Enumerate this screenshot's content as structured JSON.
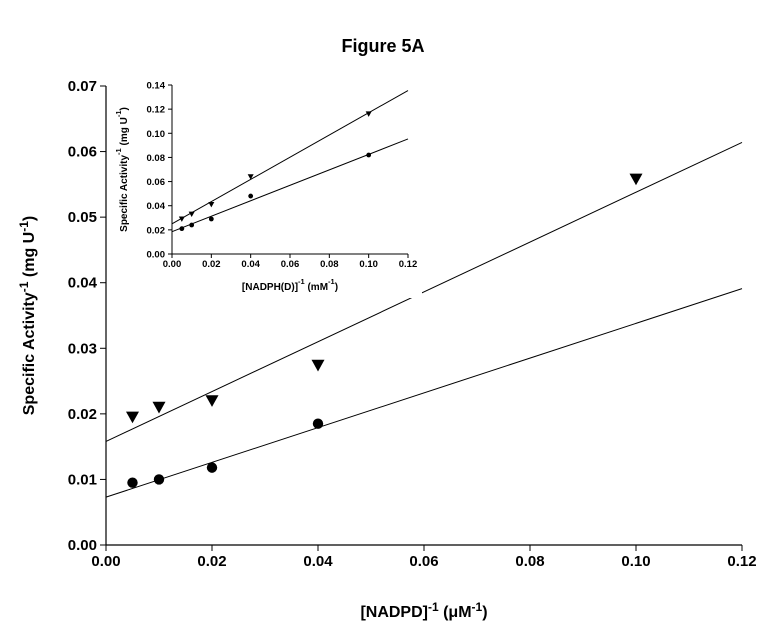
{
  "chart_data": [
    {
      "type": "scatter",
      "title": "Figure 5A",
      "xlabel": "[NADPD]-1 (μM-1)",
      "ylabel": "Specific Activity-1 (mg U-1)",
      "xlim": [
        0.0,
        0.12
      ],
      "ylim": [
        0.0,
        0.07
      ],
      "x_ticks": [
        "0.00",
        "0.02",
        "0.04",
        "0.06",
        "0.08",
        "0.10",
        "0.12"
      ],
      "y_ticks": [
        "0.00",
        "0.01",
        "0.02",
        "0.03",
        "0.04",
        "0.05",
        "0.06",
        "0.07"
      ],
      "grid": false,
      "legend": "none",
      "series": [
        {
          "marker": "triangle-down",
          "x": [
            0.005,
            0.01,
            0.02,
            0.04,
            0.1
          ],
          "y": [
            0.0195,
            0.021,
            0.022,
            0.0274,
            0.0558
          ],
          "fit": {
            "intercept": 0.0158,
            "slope": 0.38
          }
        },
        {
          "marker": "circle",
          "x": [
            0.005,
            0.01,
            0.02,
            0.04
          ],
          "y": [
            0.0095,
            0.01,
            0.0118,
            0.0185
          ],
          "fit": {
            "intercept": 0.0073,
            "slope": 0.265
          }
        }
      ]
    },
    {
      "type": "scatter",
      "title": "",
      "xlabel": "[NADPH(D)]-1 (mM-1)",
      "ylabel": "Specific Activity-1 (mg U-1)",
      "xlim": [
        0.0,
        0.12
      ],
      "ylim": [
        0.0,
        0.14
      ],
      "x_ticks": [
        "0.00",
        "0.02",
        "0.04",
        "0.06",
        "0.08",
        "0.10",
        "0.12"
      ],
      "y_ticks": [
        "0.00",
        "0.02",
        "0.04",
        "0.06",
        "0.08",
        "0.10",
        "0.12",
        "0.14"
      ],
      "grid": false,
      "legend": "none",
      "series": [
        {
          "marker": "triangle-down",
          "x": [
            0.005,
            0.01,
            0.02,
            0.04,
            0.1
          ],
          "y": [
            0.029,
            0.033,
            0.041,
            0.064,
            0.116
          ],
          "fit": {
            "intercept": 0.025,
            "slope": 0.92
          }
        },
        {
          "marker": "circle",
          "x": [
            0.005,
            0.01,
            0.02,
            0.04,
            0.1
          ],
          "y": [
            0.021,
            0.024,
            0.029,
            0.048,
            0.082
          ],
          "fit": {
            "intercept": 0.0185,
            "slope": 0.64
          }
        }
      ]
    }
  ]
}
